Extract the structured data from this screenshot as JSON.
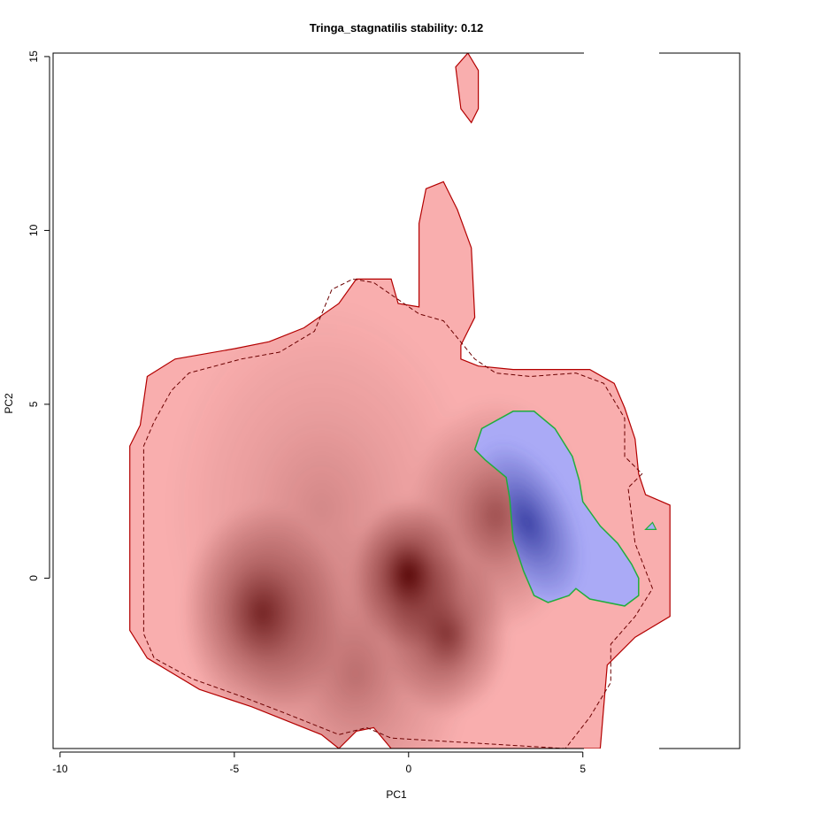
{
  "chart_data": {
    "type": "heatmap",
    "title": "Tringa_stagnatilis stability: 0.12",
    "xlabel": "PC1",
    "ylabel": "PC2",
    "xlim": [
      -10.2,
      9.5
    ],
    "ylim": [
      -4.9,
      15.1
    ],
    "x_ticks": [
      -10,
      -5,
      0,
      5
    ],
    "y_ticks": [
      0,
      5,
      10,
      15
    ],
    "grid": false,
    "colors": {
      "region_fill": "#f9aeae",
      "density_dark": "#520000",
      "contour_red": "#b30000",
      "overlap_fill": "#aaaaf6",
      "overlap_dark": "#3a40a4",
      "overlap_contour": "#1fae3c",
      "background": "#ffffff",
      "axis": "#000000"
    },
    "series": [
      {
        "layer": "native_niche",
        "outline": [
          [
            -8,
            -0.9
          ],
          [
            -8,
            3.8
          ],
          [
            -7.7,
            4.4
          ],
          [
            -7.5,
            5.8
          ],
          [
            -6.7,
            6.3
          ],
          [
            -5,
            6.6
          ],
          [
            -4,
            6.8
          ],
          [
            -3,
            7.2
          ],
          [
            -2,
            7.9
          ],
          [
            -1.5,
            8.6
          ],
          [
            -0.5,
            8.6
          ],
          [
            -0.3,
            7.9
          ],
          [
            0.3,
            7.8
          ],
          [
            0.3,
            10.2
          ],
          [
            0.5,
            11.2
          ],
          [
            1,
            11.4
          ],
          [
            1.4,
            10.6
          ],
          [
            1.8,
            9.5
          ],
          [
            1.9,
            7.5
          ],
          [
            1.5,
            6.7
          ],
          [
            1.5,
            6.3
          ],
          [
            2,
            6.1
          ],
          [
            3,
            6.0
          ],
          [
            4,
            6.0
          ],
          [
            5.2,
            6.0
          ],
          [
            5.9,
            5.6
          ],
          [
            6.2,
            4.9
          ],
          [
            6.5,
            4.0
          ],
          [
            6.6,
            3.0
          ],
          [
            6.8,
            2.4
          ],
          [
            7.5,
            2.1
          ],
          [
            7.5,
            -1.1
          ],
          [
            6.5,
            -1.7
          ],
          [
            5.7,
            -2.5
          ],
          [
            5.5,
            -4.9
          ],
          [
            -0.5,
            -4.9
          ],
          [
            -1,
            -4.3
          ],
          [
            -1.5,
            -4.4
          ],
          [
            -2,
            -4.9
          ],
          [
            -2.5,
            -4.5
          ],
          [
            -4.5,
            -3.7
          ],
          [
            -6,
            -3.2
          ],
          [
            -7.5,
            -2.3
          ],
          [
            -8,
            -1.5
          ]
        ],
        "island": [
          [
            1.35,
            14.7
          ],
          [
            1.5,
            13.5
          ],
          [
            1.8,
            13.1
          ],
          [
            2.0,
            13.5
          ],
          [
            2.0,
            14.6
          ],
          [
            1.7,
            15.1
          ]
        ],
        "dashed_contour": [
          [
            -7.6,
            -0.9
          ],
          [
            -7.6,
            3.8
          ],
          [
            -7.3,
            4.5
          ],
          [
            -6.8,
            5.4
          ],
          [
            -6.3,
            5.9
          ],
          [
            -4.8,
            6.3
          ],
          [
            -3.7,
            6.5
          ],
          [
            -2.7,
            7.1
          ],
          [
            -2.2,
            8.3
          ],
          [
            -1.6,
            8.6
          ],
          [
            -1,
            8.5
          ],
          [
            0.3,
            7.6
          ],
          [
            1,
            7.4
          ],
          [
            1.9,
            6.3
          ],
          [
            2.5,
            5.9
          ],
          [
            3.5,
            5.8
          ],
          [
            4.8,
            5.9
          ],
          [
            5.6,
            5.6
          ],
          [
            6.2,
            4.6
          ],
          [
            6.2,
            3.5
          ],
          [
            6.7,
            3.0
          ],
          [
            6.3,
            2.6
          ],
          [
            6.5,
            1.0
          ],
          [
            7.0,
            -0.3
          ],
          [
            6.5,
            -1.1
          ],
          [
            5.8,
            -1.9
          ],
          [
            5.8,
            -3.0
          ],
          [
            5.2,
            -4.0
          ],
          [
            4.5,
            -4.9
          ],
          [
            -0.5,
            -4.6
          ],
          [
            -1.2,
            -4.3
          ],
          [
            -2,
            -4.5
          ],
          [
            -3.5,
            -3.9
          ],
          [
            -4.8,
            -3.4
          ],
          [
            -6.2,
            -2.9
          ],
          [
            -7.3,
            -2.3
          ],
          [
            -7.6,
            -1.6
          ]
        ],
        "density_peaks": [
          {
            "x": 0.0,
            "y": 0.1,
            "weight": 1.0,
            "spread": 0.9
          },
          {
            "x": 1.1,
            "y": -1.6,
            "weight": 0.72,
            "spread": 1.0
          },
          {
            "x": -4.2,
            "y": -1.0,
            "weight": 0.8,
            "spread": 1.3
          },
          {
            "x": 2.5,
            "y": 1.8,
            "weight": 0.55,
            "spread": 1.4
          },
          {
            "x": -1.5,
            "y": -2.8,
            "weight": 0.35,
            "spread": 1.8
          },
          {
            "x": -2.5,
            "y": 2.0,
            "weight": 0.22,
            "spread": 2.5
          }
        ]
      },
      {
        "layer": "overlap_niche",
        "outline": [
          [
            3.0,
            4.8
          ],
          [
            3.6,
            4.8
          ],
          [
            4.2,
            4.3
          ],
          [
            4.7,
            3.5
          ],
          [
            4.9,
            2.8
          ],
          [
            5.0,
            2.2
          ],
          [
            5.5,
            1.5
          ],
          [
            6.0,
            1.0
          ],
          [
            6.4,
            0.4
          ],
          [
            6.6,
            0.0
          ],
          [
            6.6,
            -0.5
          ],
          [
            6.2,
            -0.8
          ],
          [
            5.2,
            -0.6
          ],
          [
            4.8,
            -0.3
          ],
          [
            4.6,
            -0.5
          ],
          [
            4.0,
            -0.7
          ],
          [
            3.6,
            -0.5
          ],
          [
            3.3,
            0.2
          ],
          [
            3.0,
            1.1
          ],
          [
            2.9,
            2.3
          ],
          [
            2.8,
            2.9
          ],
          [
            2.2,
            3.4
          ],
          [
            1.9,
            3.7
          ],
          [
            2.1,
            4.3
          ]
        ],
        "island": [
          [
            6.8,
            1.4
          ],
          [
            7.1,
            1.4
          ],
          [
            7.0,
            1.6
          ]
        ],
        "density_peaks": [
          {
            "x": 3.4,
            "y": 1.6,
            "weight": 1.0,
            "spread": 0.8
          }
        ]
      }
    ]
  }
}
